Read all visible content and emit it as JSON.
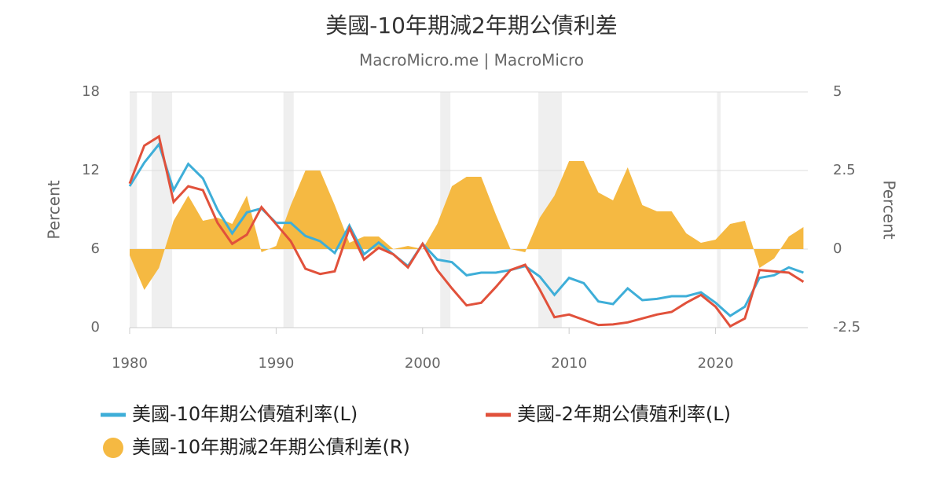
{
  "chart_data": {
    "type": "line",
    "title": "美國-10年期減2年期公債利差",
    "subtitle": "MacroMicro.me | MacroMicro",
    "y_label": "Percent",
    "y2_label": "Percent",
    "x": [
      1980,
      1981,
      1982,
      1983,
      1984,
      1985,
      1986,
      1987,
      1988,
      1989,
      1990,
      1991,
      1992,
      1993,
      1994,
      1995,
      1996,
      1997,
      1998,
      1999,
      2000,
      2001,
      2002,
      2003,
      2004,
      2005,
      2006,
      2007,
      2008,
      2009,
      2010,
      2011,
      2012,
      2013,
      2014,
      2015,
      2016,
      2017,
      2018,
      2019,
      2020,
      2021,
      2022,
      2023,
      2024,
      2025,
      2026
    ],
    "xlim": [
      1980,
      2026.3
    ],
    "xticks": [
      1980,
      1990,
      2000,
      2010,
      2020
    ],
    "ylim": [
      0,
      18
    ],
    "yticks": [
      0,
      6,
      12,
      18
    ],
    "y2lim": [
      -2.5,
      5
    ],
    "y2ticks": [
      -2.5,
      0,
      2.5,
      5
    ],
    "grid": true,
    "shaded_ranges": [
      [
        1980.0,
        1980.5
      ],
      [
        1981.5,
        1982.9
      ],
      [
        1990.5,
        1991.2
      ],
      [
        2001.2,
        2001.9
      ],
      [
        2007.9,
        2009.5
      ],
      [
        2020.1,
        2020.35
      ]
    ],
    "shade_color": "#efefef",
    "series": [
      {
        "name": "美國-10年期公債殖利率(L)",
        "color": "#3eaed8",
        "type": "line",
        "values": [
          10.8,
          12.6,
          14.0,
          10.5,
          12.5,
          11.4,
          9.0,
          7.2,
          8.8,
          9.1,
          8.0,
          8.0,
          7.0,
          6.6,
          5.7,
          7.8,
          5.6,
          6.5,
          5.6,
          4.7,
          6.4,
          5.2,
          5.0,
          4.0,
          4.2,
          4.2,
          4.4,
          4.7,
          3.9,
          2.5,
          3.8,
          3.4,
          2.0,
          1.8,
          3.0,
          2.1,
          2.2,
          2.4,
          2.4,
          2.7,
          1.9,
          0.9,
          1.6,
          3.8,
          4.0,
          4.6,
          4.2
        ]
      },
      {
        "name": "美國-2年期公債殖利率(L)",
        "color": "#e1513b",
        "type": "line",
        "values": [
          11.0,
          13.9,
          14.6,
          9.6,
          10.8,
          10.5,
          8.0,
          6.4,
          7.1,
          9.2,
          7.9,
          6.6,
          4.5,
          4.1,
          4.3,
          7.6,
          5.2,
          6.1,
          5.6,
          4.6,
          6.4,
          4.4,
          3.0,
          1.7,
          1.9,
          3.1,
          4.4,
          4.8,
          2.9,
          0.8,
          1.0,
          0.6,
          0.2,
          0.25,
          0.4,
          0.7,
          1.0,
          1.2,
          1.9,
          2.5,
          1.6,
          0.1,
          0.7,
          4.4,
          4.3,
          4.2,
          3.5
        ]
      },
      {
        "name": "美國-10年期減2年期公債利差(R)",
        "color": "#f5b942",
        "type": "area",
        "axis": "y2",
        "values": [
          -0.2,
          -1.3,
          -0.6,
          0.9,
          1.7,
          0.9,
          1.0,
          0.8,
          1.7,
          -0.1,
          0.1,
          1.4,
          2.5,
          2.5,
          1.4,
          0.2,
          0.4,
          0.4,
          0.0,
          0.1,
          0.0,
          0.8,
          2.0,
          2.3,
          2.3,
          1.1,
          0.0,
          -0.1,
          1.0,
          1.7,
          2.8,
          2.8,
          1.8,
          1.55,
          2.6,
          1.4,
          1.2,
          1.2,
          0.5,
          0.2,
          0.3,
          0.8,
          0.9,
          -0.6,
          -0.3,
          0.4,
          0.7
        ]
      }
    ]
  }
}
